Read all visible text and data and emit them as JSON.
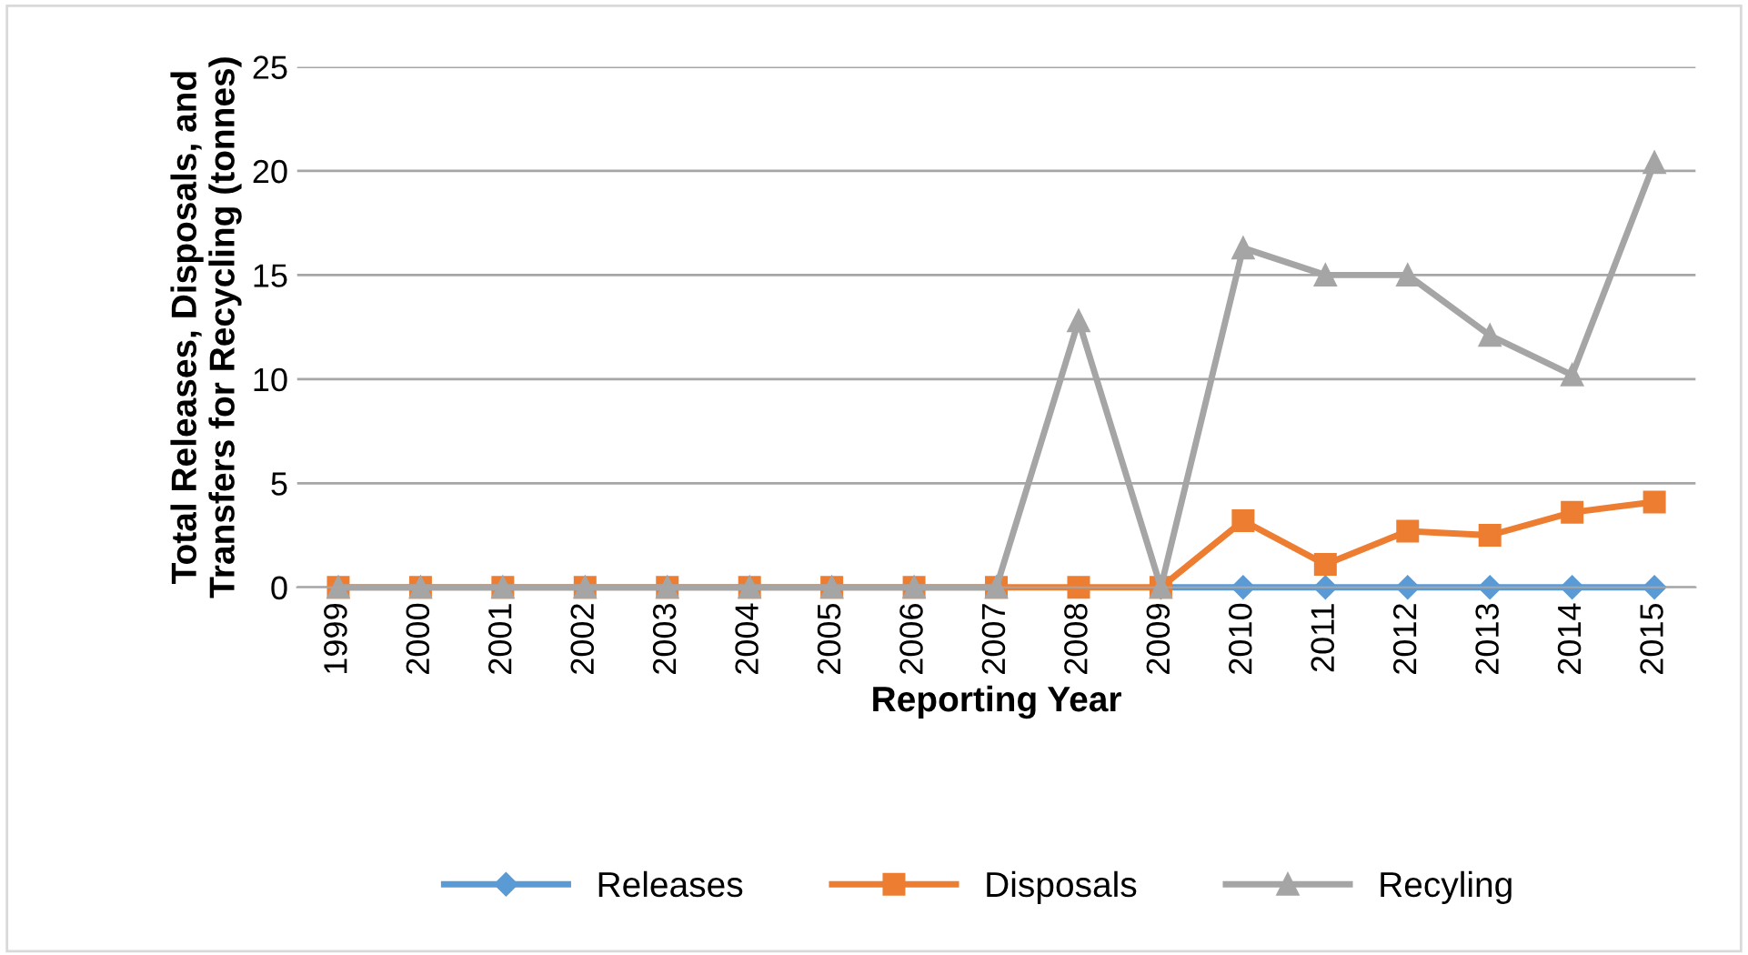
{
  "chart_data": {
    "type": "line",
    "ylabel": "Total Releases, Disposals, and Transfers for Recycling (tonnes)",
    "xlabel": "Reporting Year",
    "categories": [
      "1999",
      "2000",
      "2001",
      "2002",
      "2003",
      "2004",
      "2005",
      "2006",
      "2007",
      "2008",
      "2009",
      "2010",
      "2011",
      "2012",
      "2013",
      "2014",
      "2015"
    ],
    "series": [
      {
        "name": "Releases",
        "color": "#5b9bd5",
        "marker": "diamond",
        "values": [
          null,
          null,
          null,
          null,
          null,
          null,
          null,
          null,
          null,
          null,
          0,
          0,
          0,
          0,
          0,
          0,
          0
        ]
      },
      {
        "name": "Disposals",
        "color": "#ed7d31",
        "marker": "square",
        "values": [
          0,
          0,
          0,
          0,
          0,
          0,
          0,
          0,
          0,
          0,
          0,
          3.2,
          1.1,
          2.7,
          2.5,
          3.6,
          4.1
        ]
      },
      {
        "name": "Recyling",
        "color": "#a5a5a5",
        "marker": "triangle",
        "values": [
          0,
          0,
          0,
          0,
          0,
          0,
          0,
          0,
          0,
          12.8,
          0,
          16.3,
          15.0,
          15.0,
          12.1,
          10.2,
          20.4
        ]
      }
    ],
    "ylim": [
      0,
      25
    ],
    "yticks": [
      0,
      5,
      10,
      15,
      20,
      25
    ],
    "grid": "y",
    "legend": "bottom",
    "line_style": "solid"
  }
}
